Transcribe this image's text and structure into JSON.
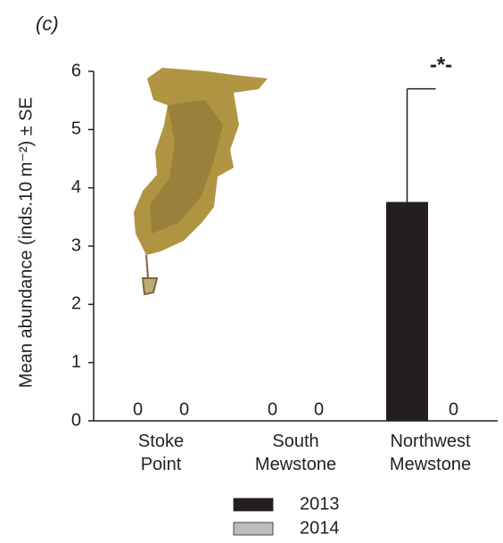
{
  "chart_data": {
    "type": "bar",
    "panel_label": "(c)",
    "y_label": "Mean abundance (inds.10 m⁻²) ± SE",
    "categories": [
      "Stoke Point",
      "South Mewstone",
      "Northwest Mewstone"
    ],
    "series": [
      {
        "name": "2013",
        "color": "#231f20",
        "values": [
          0,
          0,
          3.75
        ],
        "errors": [
          null,
          null,
          1.95
        ]
      },
      {
        "name": "2014",
        "color": "#bdbdbd",
        "values": [
          0,
          0,
          0
        ],
        "errors": [
          null,
          null,
          null
        ]
      }
    ],
    "annotations": [
      {
        "text": "-*-",
        "category": 2
      }
    ],
    "ylim": [
      0,
      6
    ],
    "yticks": [
      0,
      1,
      2,
      3,
      4,
      5,
      6
    ],
    "legend": "bottom"
  }
}
